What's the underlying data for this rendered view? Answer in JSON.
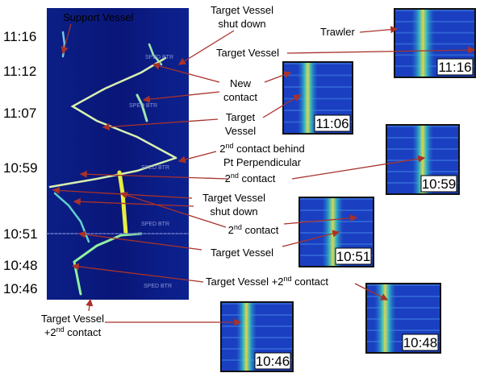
{
  "waterfall": {
    "axis_times": [
      "11:16",
      "11:12",
      "11:07",
      "10:59",
      "10:51",
      "10:48",
      "10:46"
    ],
    "watermarks": [
      "SPED BTR",
      "SPED BTR",
      "SPED BTR",
      "SPED BTR",
      "SPED BTR"
    ]
  },
  "annotations": [
    {
      "lines": [
        "Support Vessel"
      ]
    },
    {
      "lines": [
        "Target Vessel",
        "shut down"
      ]
    },
    {
      "lines": [
        "Trawler"
      ]
    },
    {
      "lines": [
        "Target Vessel"
      ]
    },
    {
      "lines": [
        "New",
        "contact"
      ]
    },
    {
      "lines": [
        "Target",
        "Vessel"
      ]
    },
    {
      "lines": [
        {
          "base": "2",
          "sup": "nd",
          "rest": " contact behind"
        },
        "Pt Perpendicular"
      ]
    },
    {
      "lines": [
        {
          "base": "2",
          "sup": "nd",
          "rest": " contact"
        }
      ]
    },
    {
      "lines": [
        "Target Vessel",
        "shut down"
      ]
    },
    {
      "lines": [
        {
          "base": "2",
          "sup": "nd",
          "rest": " contact"
        }
      ]
    },
    {
      "lines": [
        "Target Vessel"
      ]
    },
    {
      "lines": [
        {
          "base": "Target Vessel +2",
          "sup": "nd",
          "rest": " contact"
        }
      ]
    },
    {
      "lines": [
        "Target Vessel",
        {
          "base": "+2",
          "sup": "nd",
          "rest": " contact"
        }
      ]
    }
  ],
  "insets": [
    {
      "time": "11:16"
    },
    {
      "time": "11:06"
    },
    {
      "time": "10:59"
    },
    {
      "time": "10:51"
    },
    {
      "time": "10:48"
    },
    {
      "time": "10:46"
    }
  ]
}
